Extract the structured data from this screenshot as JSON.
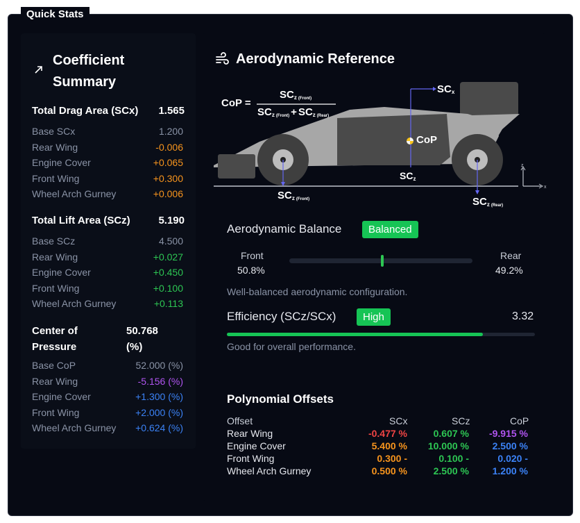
{
  "quick_stats": {
    "title": "Quick Stats"
  },
  "left": {
    "title": "Coefficient Summary",
    "drag": {
      "label": "Total Drag Area (SCx)",
      "value": "1.565",
      "rows": [
        {
          "label": "Base SCx",
          "value": "1.200",
          "color": "#8a93a6"
        },
        {
          "label": "Rear Wing",
          "value": "-0.006",
          "color": "#f7941d"
        },
        {
          "label": "Engine Cover",
          "value": "+0.065",
          "color": "#f7941d"
        },
        {
          "label": "Front Wing",
          "value": "+0.300",
          "color": "#f7941d"
        },
        {
          "label": "Wheel Arch Gurney",
          "value": "+0.006",
          "color": "#f7941d"
        }
      ]
    },
    "lift": {
      "label": "Total Lift Area (SCz)",
      "value": "5.190",
      "rows": [
        {
          "label": "Base SCz",
          "value": "4.500",
          "color": "#8a93a6"
        },
        {
          "label": "Rear Wing",
          "value": "+0.027",
          "color": "#2dc653"
        },
        {
          "label": "Engine Cover",
          "value": "+0.450",
          "color": "#2dc653"
        },
        {
          "label": "Front Wing",
          "value": "+0.100",
          "color": "#2dc653"
        },
        {
          "label": "Wheel Arch Gurney",
          "value": "+0.113",
          "color": "#2dc653"
        }
      ]
    },
    "cop": {
      "label_line1": "Center of",
      "label_line2": "Pressure",
      "value_line1": "50.768",
      "value_line2": "(%)",
      "rows": [
        {
          "label": "Base CoP",
          "value": "52.000 (%)",
          "color": "#8a93a6"
        },
        {
          "label": "Rear Wing",
          "value": "-5.156 (%)",
          "color": "#b054f0"
        },
        {
          "label": "Engine Cover",
          "value": "+1.300 (%)",
          "color": "#3b82f6"
        },
        {
          "label": "Front Wing",
          "value": "+2.000 (%)",
          "color": "#3b82f6"
        },
        {
          "label": "Wheel Arch Gurney",
          "value": "+0.624 (%)",
          "color": "#3b82f6"
        }
      ]
    }
  },
  "right": {
    "title": "Aerodynamic Reference",
    "diagram": {
      "cop_eq": "CoP =",
      "scz": "SC",
      "sub_z": "z",
      "sub_front": "(Front)",
      "sub_rear": "(Rear)",
      "plus": "+",
      "scx": "SC",
      "sub_x": "x",
      "cop_label": "CoP",
      "axis_z": "z",
      "axis_x": "x"
    },
    "balance": {
      "label": "Aerodynamic Balance",
      "badge": "Balanced",
      "front_label": "Front",
      "front_value": "50.8%",
      "rear_label": "Rear",
      "rear_value": "49.2%",
      "front_fraction": 0.508,
      "note": "Well-balanced aerodynamic configuration."
    },
    "efficiency": {
      "label": "Efficiency (SCz/SCx)",
      "badge": "High",
      "value": "3.32",
      "fraction": 0.83,
      "note": "Good for overall performance."
    },
    "poly": {
      "title": "Polynomial Offsets",
      "headers": [
        "Offset",
        "SCx",
        "SCz",
        "CoP"
      ],
      "rows": [
        {
          "name": "Rear Wing",
          "scx": "-0.477 %",
          "scz": "0.607 %",
          "cop": "-9.915 %",
          "scx_color": "#f04444",
          "scz_color": "#2dc653",
          "cop_color": "#b054f0"
        },
        {
          "name": "Engine Cover",
          "scx": "5.400 %",
          "scz": "10.000 %",
          "cop": "2.500 %",
          "scx_color": "#f7941d",
          "scz_color": "#2dc653",
          "cop_color": "#3b82f6"
        },
        {
          "name": "Front Wing",
          "scx": "0.300 -",
          "scz": "0.100 -",
          "cop": "0.020 -",
          "scx_color": "#f7941d",
          "scz_color": "#2dc653",
          "cop_color": "#3b82f6"
        },
        {
          "name": "Wheel Arch Gurney",
          "scx": "0.500 %",
          "scz": "2.500 %",
          "cop": "1.200 %",
          "scx_color": "#f7941d",
          "scz_color": "#2dc653",
          "cop_color": "#3b82f6"
        }
      ]
    }
  }
}
